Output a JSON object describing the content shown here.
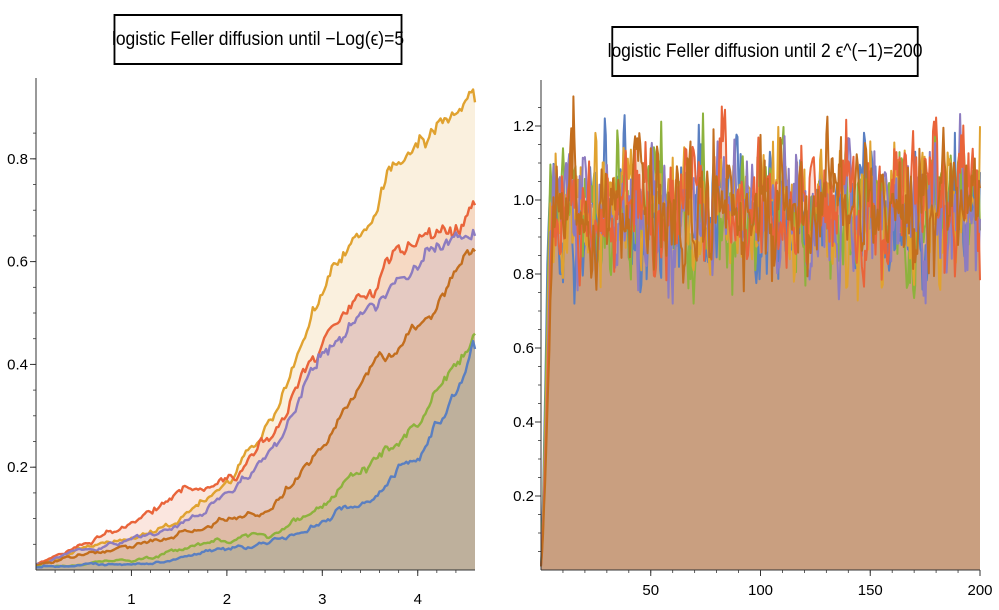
{
  "chart_data": [
    {
      "type": "area",
      "title": "logistic  Feller diffusion until −Log(ϵ)=5",
      "xlabel": "",
      "ylabel": "",
      "xlim": [
        0,
        4.6
      ],
      "ylim": [
        0,
        0.93
      ],
      "x_ticks": [
        "1",
        "2",
        "3",
        "4"
      ],
      "x_tick_values": [
        1,
        2,
        3,
        4
      ],
      "y_ticks": [
        "0.2",
        "0.4",
        "0.6",
        "0.8"
      ],
      "y_tick_values": [
        0.2,
        0.4,
        0.6,
        0.8
      ],
      "grid": false,
      "legend": "none",
      "x": [
        0,
        0.5,
        1.0,
        1.5,
        2.0,
        2.5,
        3.0,
        3.5,
        4.0,
        4.6
      ],
      "series": [
        {
          "color": "#E0A230",
          "values": [
            0.01,
            0.04,
            0.06,
            0.1,
            0.17,
            0.3,
            0.55,
            0.68,
            0.85,
            0.91
          ]
        },
        {
          "color": "#E9643A",
          "values": [
            0.01,
            0.05,
            0.09,
            0.15,
            0.17,
            0.27,
            0.45,
            0.56,
            0.64,
            0.71
          ]
        },
        {
          "color": "#8D7CC0",
          "values": [
            0.01,
            0.04,
            0.06,
            0.09,
            0.15,
            0.24,
            0.41,
            0.5,
            0.6,
            0.65
          ]
        },
        {
          "color": "#C36E1E",
          "values": [
            0.01,
            0.03,
            0.05,
            0.07,
            0.09,
            0.12,
            0.24,
            0.38,
            0.47,
            0.62
          ]
        },
        {
          "color": "#8DB23D",
          "values": [
            0.005,
            0.01,
            0.015,
            0.04,
            0.06,
            0.07,
            0.13,
            0.21,
            0.28,
            0.46
          ]
        },
        {
          "color": "#5A7FC1",
          "values": [
            0.005,
            0.01,
            0.01,
            0.02,
            0.04,
            0.05,
            0.09,
            0.14,
            0.21,
            0.43
          ]
        }
      ]
    },
    {
      "type": "area",
      "title": "logistic  Feller diffusion until 2 ϵ^(−1)=200",
      "xlabel": "",
      "ylabel": "",
      "xlim": [
        0,
        200
      ],
      "ylim": [
        0,
        1.3
      ],
      "x_ticks": [
        "50",
        "100",
        "150",
        "200"
      ],
      "x_tick_values": [
        50,
        100,
        150,
        200
      ],
      "y_ticks": [
        "0.2",
        "0.4",
        "0.6",
        "0.8",
        "1.0",
        "1.2"
      ],
      "y_tick_values": [
        0.2,
        0.4,
        0.6,
        0.8,
        1.0,
        1.2
      ],
      "grid": false,
      "legend": "none",
      "equilibrium": 1.0,
      "fluctuation_range": [
        0.72,
        1.28
      ],
      "series": [
        {
          "color": "#5A7FC1"
        },
        {
          "color": "#8DB23D"
        },
        {
          "color": "#E0A230"
        },
        {
          "color": "#8D7CC0"
        },
        {
          "color": "#E9643A"
        },
        {
          "color": "#C36E1E"
        }
      ]
    }
  ]
}
